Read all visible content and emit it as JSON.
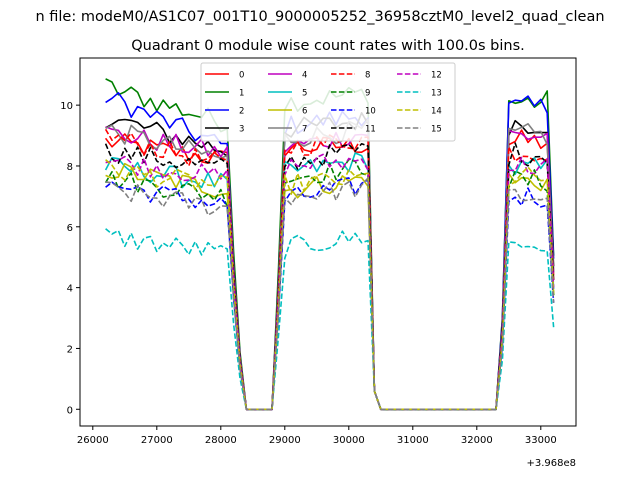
{
  "figure": {
    "suptitle": "n file: modeM0/AS1C07_001T10_9000005252_36958cztM0_level2_quad_clean",
    "offset_label": "+3.968e8"
  },
  "chart_data": {
    "type": "line",
    "title": "Quadrant 0 module wise count rates with 100.0s bins.",
    "xlabel": "",
    "ylabel": "",
    "x_offset": 396800000,
    "xlim": [
      25800,
      33550
    ],
    "ylim": [
      -0.55,
      11.55
    ],
    "xticks": [
      26000,
      27000,
      28000,
      29000,
      30000,
      31000,
      32000,
      33000
    ],
    "yticks": [
      0,
      2,
      4,
      6,
      8,
      10
    ],
    "grid": false,
    "legend_position": "top-center",
    "legend_columns": 4,
    "segments": [
      {
        "start": 26200,
        "end": 28100,
        "step": 100
      },
      {
        "start": 28200,
        "end": 28300,
        "step": 100
      },
      {
        "start": 28400,
        "end": 28800,
        "step": 100
      },
      {
        "start": 28900,
        "end": 29000,
        "step": 100
      },
      {
        "start": 29000,
        "end": 30300,
        "step": 100
      },
      {
        "start": 30400,
        "end": 30500,
        "step": 100
      },
      {
        "start": 30500,
        "end": 32300,
        "step": 100
      },
      {
        "start": 32400,
        "end": 33200,
        "step": 100
      }
    ],
    "series": [
      {
        "name": "0",
        "color": "#ff0000",
        "dash": "solid",
        "levels": [
          8.8,
          8.2,
          8.6,
          8.7,
          8.8
        ]
      },
      {
        "name": "1",
        "color": "#008000",
        "dash": "solid",
        "levels": [
          10.6,
          9.4,
          10.1,
          10.4,
          10.1
        ]
      },
      {
        "name": "2",
        "color": "#0000ff",
        "dash": "solid",
        "levels": [
          10.3,
          8.6,
          9.3,
          9.7,
          9.9
        ]
      },
      {
        "name": "3",
        "color": "#000000",
        "dash": "solid",
        "levels": [
          9.6,
          8.5,
          9.2,
          9.5,
          9.4
        ]
      },
      {
        "name": "4",
        "color": "#bf00bf",
        "dash": "solid",
        "levels": [
          9.1,
          8.4,
          8.6,
          9.1,
          9.0
        ]
      },
      {
        "name": "5",
        "color": "#00bfbf",
        "dash": "solid",
        "levels": [
          8.0,
          7.4,
          7.8,
          8.2,
          7.9
        ]
      },
      {
        "name": "6",
        "color": "#bfbf00",
        "dash": "solid",
        "levels": [
          7.9,
          7.2,
          7.2,
          7.6,
          7.5
        ]
      },
      {
        "name": "7",
        "color": "#808080",
        "dash": "solid",
        "levels": [
          9.2,
          8.2,
          8.9,
          9.2,
          9.0
        ]
      },
      {
        "name": "8",
        "color": "#ff0000",
        "dash": "dashed",
        "levels": [
          9.0,
          8.0,
          8.6,
          8.9,
          8.5
        ]
      },
      {
        "name": "9",
        "color": "#008000",
        "dash": "dashed",
        "levels": [
          7.6,
          7.0,
          7.6,
          8.0,
          7.5
        ]
      },
      {
        "name": "10",
        "color": "#0000ff",
        "dash": "dashed",
        "levels": [
          7.4,
          6.7,
          6.9,
          7.4,
          7.0
        ]
      },
      {
        "name": "11",
        "color": "#000000",
        "dash": "dashed",
        "levels": [
          8.5,
          7.9,
          8.1,
          8.6,
          8.4
        ]
      },
      {
        "name": "12",
        "color": "#bf00bf",
        "dash": "dashed",
        "levels": [
          8.2,
          7.6,
          8.0,
          8.2,
          8.0
        ]
      },
      {
        "name": "13",
        "color": "#00bfbf",
        "dash": "dashed",
        "levels": [
          5.7,
          5.1,
          5.3,
          5.7,
          5.4
        ]
      },
      {
        "name": "14",
        "color": "#bfbf00",
        "dash": "dashed",
        "levels": [
          7.9,
          7.3,
          7.4,
          7.6,
          7.6
        ]
      },
      {
        "name": "15",
        "color": "#808080",
        "dash": "dashed",
        "levels": [
          7.2,
          6.6,
          7.0,
          7.3,
          7.0
        ]
      }
    ]
  }
}
